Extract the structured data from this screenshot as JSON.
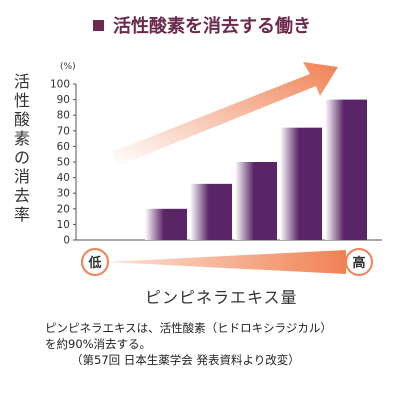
{
  "title": "活性酸素を消去する働き",
  "chart_data": {
    "type": "bar",
    "unit": "(%)",
    "ylabel_chars": [
      "活",
      "性",
      "酸",
      "素",
      "の",
      "消",
      "去",
      "率"
    ],
    "xlabel": "ピンピネラエキス量",
    "yticks": [
      0,
      10,
      20,
      30,
      40,
      50,
      60,
      70,
      80,
      90,
      100
    ],
    "ylim": [
      0,
      100
    ],
    "categories": [
      "",
      "",
      "",
      "",
      "",
      ""
    ],
    "values": [
      0,
      20,
      36,
      50,
      72,
      90
    ],
    "low_label": "低",
    "high_label": "高",
    "colors": {
      "bar_dark": "#5a2566",
      "bar_light": "#ffffff",
      "arrow": "#f08255",
      "badge_border": "#f08255"
    }
  },
  "note": {
    "line1": "ピンピネラエキスは、活性酸素（ヒドロキシラジカル）",
    "line2": "を約90%消去する。",
    "line3": "（第57回 日本生薬学会 発表資料より改変）"
  }
}
